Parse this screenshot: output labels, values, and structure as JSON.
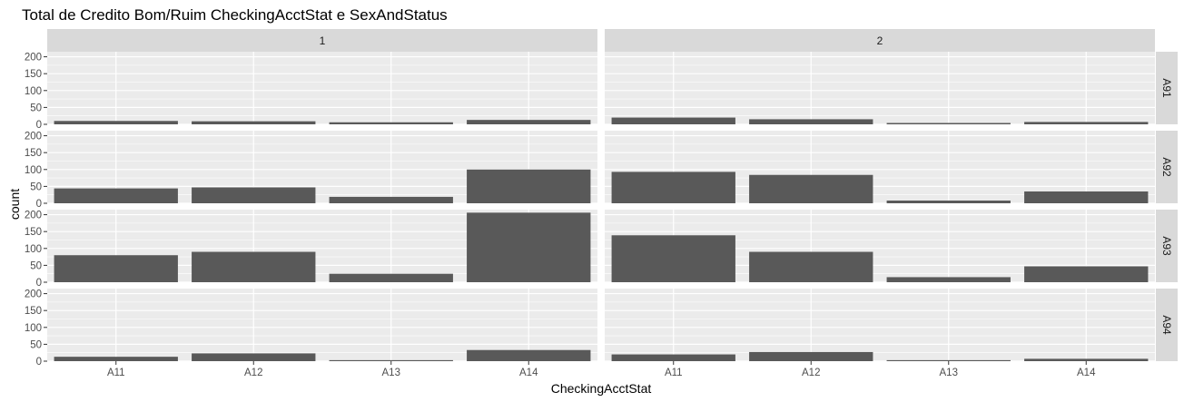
{
  "chart_data": {
    "type": "bar",
    "title": "Total de Credito Bom/Ruim CheckingAcctStat e SexAndStatus",
    "xlabel": "CheckingAcctStat",
    "ylabel": "count",
    "categories": [
      "A11",
      "A12",
      "A13",
      "A14"
    ],
    "ylim": [
      0,
      215
    ],
    "yticks": [
      0,
      50,
      100,
      150,
      200
    ],
    "yticks_labels": [
      "0",
      "50",
      "100",
      "150",
      "200"
    ],
    "grid": true,
    "bar_color": "#595959",
    "panel_color": "#ebebeb",
    "strip_color": "#d9d9d9",
    "col_facets": [
      "1",
      "2"
    ],
    "row_facets": [
      "A91",
      "A92",
      "A93",
      "A94"
    ],
    "panels": [
      {
        "col": "1",
        "row": "A91",
        "values": [
          10,
          9,
          6,
          13
        ]
      },
      {
        "col": "2",
        "row": "A91",
        "values": [
          20,
          15,
          4,
          7
        ]
      },
      {
        "col": "1",
        "row": "A92",
        "values": [
          44,
          47,
          19,
          100
        ]
      },
      {
        "col": "2",
        "row": "A92",
        "values": [
          93,
          84,
          8,
          35
        ]
      },
      {
        "col": "1",
        "row": "A93",
        "values": [
          80,
          90,
          25,
          206
        ]
      },
      {
        "col": "2",
        "row": "A93",
        "values": [
          139,
          90,
          15,
          47
        ]
      },
      {
        "col": "1",
        "row": "A94",
        "values": [
          13,
          23,
          3,
          33
        ]
      },
      {
        "col": "2",
        "row": "A94",
        "values": [
          20,
          27,
          3,
          7
        ]
      }
    ]
  }
}
